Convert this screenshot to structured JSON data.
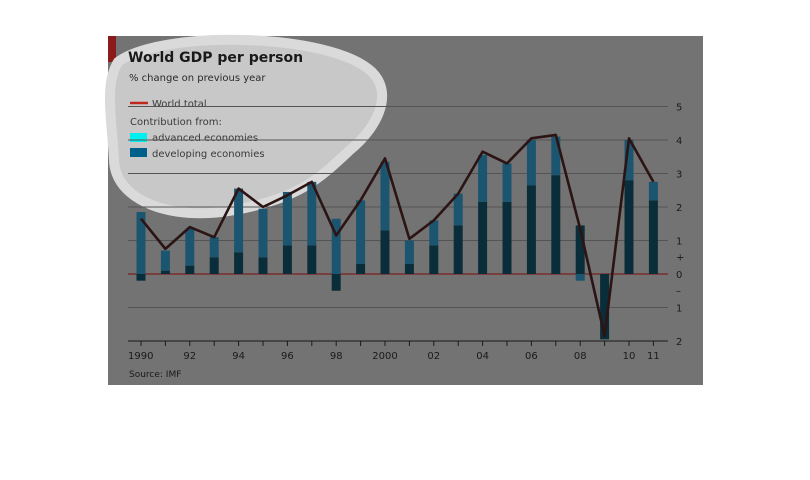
{
  "chart_data": {
    "type": "bar",
    "title": "World GDP per person",
    "subtitle": "% change on previous year",
    "source": "Source: IMF",
    "legend": {
      "line_label": "World total",
      "contribution_heading": "Contribution from:",
      "items": [
        "advanced economies",
        "developing economies"
      ]
    },
    "x": [
      1990,
      1991,
      1992,
      1993,
      1994,
      1995,
      1996,
      1997,
      1998,
      1999,
      2000,
      2001,
      2002,
      2003,
      2004,
      2005,
      2006,
      2007,
      2008,
      2009,
      2010,
      2011
    ],
    "x_tick_labels": [
      {
        "year": 1990,
        "label": "1990"
      },
      {
        "year": 1992,
        "label": "92"
      },
      {
        "year": 1994,
        "label": "94"
      },
      {
        "year": 1996,
        "label": "96"
      },
      {
        "year": 1998,
        "label": "98"
      },
      {
        "year": 2000,
        "label": "2000"
      },
      {
        "year": 2002,
        "label": "02"
      },
      {
        "year": 2004,
        "label": "04"
      },
      {
        "year": 2006,
        "label": "06"
      },
      {
        "year": 2008,
        "label": "08"
      },
      {
        "year": 2010,
        "label": "10"
      },
      {
        "year": 2011,
        "label": "11"
      }
    ],
    "y_ticks": [
      {
        "value": 5,
        "label": "5"
      },
      {
        "value": 4,
        "label": "4"
      },
      {
        "value": 3,
        "label": "3"
      },
      {
        "value": 2,
        "label": "2"
      },
      {
        "value": 1,
        "label": "1"
      },
      {
        "value": 0,
        "label": "0"
      },
      {
        "value": -1,
        "label": "1"
      },
      {
        "value": -2,
        "label": "2"
      }
    ],
    "y_sign_marks": {
      "plus": "+",
      "minus": "–"
    },
    "ylim": [
      -2,
      5
    ],
    "series": [
      {
        "name": "developing economies",
        "values": [
          -0.2,
          0.1,
          0.25,
          0.5,
          0.65,
          0.5,
          0.85,
          0.85,
          -0.5,
          0.3,
          1.3,
          0.3,
          0.85,
          1.45,
          2.15,
          2.15,
          2.65,
          2.95,
          1.45,
          -1.95,
          2.8,
          2.2
        ]
      },
      {
        "name": "advanced economies",
        "values": [
          1.85,
          0.6,
          1.1,
          0.6,
          1.9,
          1.45,
          1.6,
          1.9,
          1.65,
          1.9,
          2.05,
          0.7,
          0.75,
          0.95,
          1.4,
          1.15,
          1.35,
          1.15,
          -0.2,
          0.0,
          1.2,
          0.55
        ]
      },
      {
        "name": "World total",
        "values": [
          1.65,
          0.75,
          1.4,
          1.1,
          2.55,
          2.0,
          2.35,
          2.75,
          1.15,
          2.2,
          3.45,
          1.05,
          1.6,
          2.4,
          3.65,
          3.3,
          4.05,
          4.15,
          1.35,
          -1.85,
          4.05,
          2.75
        ]
      }
    ],
    "colors": {
      "background": "#737373",
      "gridline": "#545454",
      "developing": "#0a2d3a",
      "advanced": "#1c5570",
      "advanced_highlight": "#5d9ea8",
      "line": "#2c1414",
      "legend_advanced": "#00f0f0",
      "legend_developing": "#00608a",
      "legend_line": "#c0281e",
      "zero_line": "#7a2020"
    }
  }
}
